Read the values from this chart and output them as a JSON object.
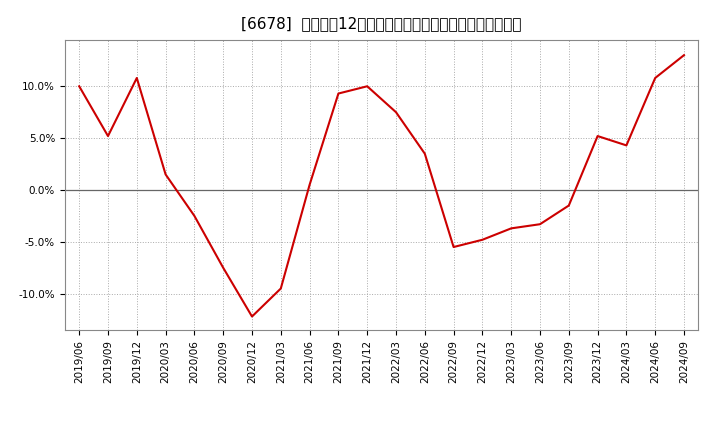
{
  "title": "[6678]  売上高の12か月移動合計の対前年同期増減率の推移",
  "line_color": "#cc0000",
  "background_color": "#ffffff",
  "plot_bg_color": "#ffffff",
  "grid_color": "#aaaaaa",
  "ylim": [
    -0.135,
    0.145
  ],
  "yticks": [
    -0.1,
    -0.05,
    0.0,
    0.05,
    0.1
  ],
  "ytick_labels": [
    "-10.0%",
    "-5.0%",
    "0.0%",
    "5.0%",
    "10.0%"
  ],
  "dates": [
    "2019/06",
    "2019/09",
    "2019/12",
    "2020/03",
    "2020/06",
    "2020/09",
    "2020/12",
    "2021/03",
    "2021/06",
    "2021/09",
    "2021/12",
    "2022/03",
    "2022/06",
    "2022/09",
    "2022/12",
    "2023/03",
    "2023/06",
    "2023/09",
    "2023/12",
    "2024/03",
    "2024/06",
    "2024/09"
  ],
  "values": [
    0.1,
    0.052,
    0.108,
    0.015,
    -0.025,
    -0.075,
    -0.122,
    -0.095,
    0.005,
    0.093,
    0.1,
    0.075,
    0.035,
    -0.055,
    -0.048,
    -0.037,
    -0.033,
    -0.015,
    0.052,
    0.043,
    0.108,
    0.13
  ],
  "title_fontsize": 11,
  "tick_fontsize": 7.5
}
